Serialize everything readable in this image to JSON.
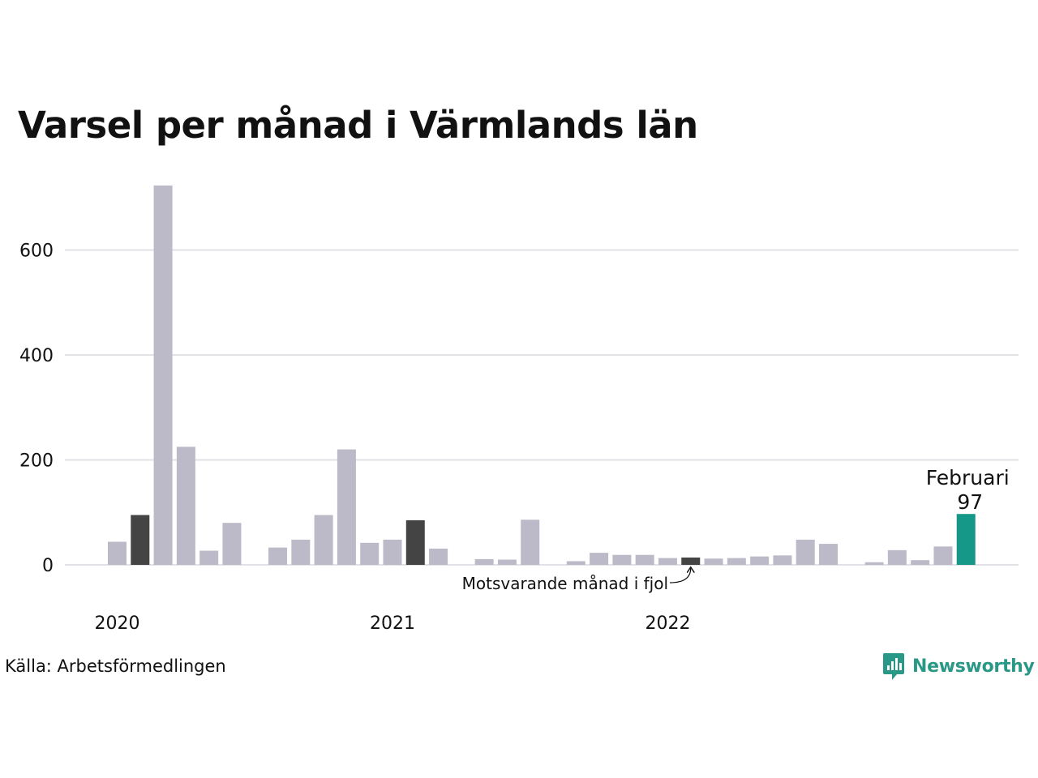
{
  "title": "Varsel per månad i Värmlands län",
  "source": "Källa: Arbetsförmedlingen",
  "brand": {
    "name": "Newsworthy",
    "icon": "newsworthy-logo-icon"
  },
  "colors": {
    "default": "#bcbac8",
    "comparison": "#444444",
    "highlight": "#169888",
    "grid": "#e2e2e6"
  },
  "chart_data": {
    "type": "bar",
    "ylim": [
      0,
      720
    ],
    "yticks": [
      0,
      200,
      400,
      600
    ],
    "year_labels": [
      {
        "label": "2020",
        "index": 0
      },
      {
        "label": "2021",
        "index": 12
      },
      {
        "label": "2022",
        "index": 24
      }
    ],
    "values": [
      44,
      95,
      723,
      225,
      27,
      80,
      null,
      33,
      48,
      95,
      220,
      42,
      48,
      85,
      31,
      null,
      11,
      10,
      86,
      null,
      7,
      23,
      19,
      19,
      13,
      14,
      12,
      13,
      16,
      18,
      48,
      40,
      null,
      5,
      28,
      9,
      35,
      97
    ],
    "comparison_indices": [
      1,
      13,
      25
    ],
    "highlight_index": 37,
    "highlight_label": {
      "month": "Februari",
      "value": "97"
    },
    "comparison_annotation": "Motsvarande månad i fjol",
    "grid": true
  }
}
